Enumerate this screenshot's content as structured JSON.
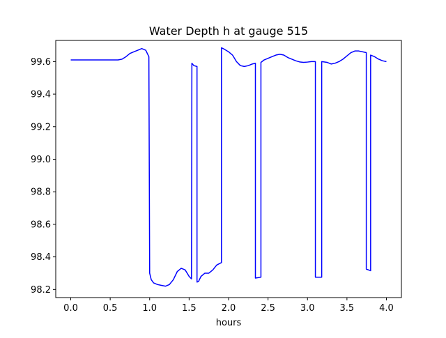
{
  "chart_data": {
    "type": "line",
    "title": "Water Depth h at gauge 515",
    "xlabel": "hours",
    "ylabel": "",
    "xlim": [
      -0.19,
      4.19
    ],
    "ylim": [
      98.15,
      99.73
    ],
    "xticks": [
      0.0,
      0.5,
      1.0,
      1.5,
      2.0,
      2.5,
      3.0,
      3.5,
      4.0
    ],
    "xtick_labels": [
      "0.0",
      "0.5",
      "1.0",
      "1.5",
      "2.0",
      "2.5",
      "3.0",
      "3.5",
      "4.0"
    ],
    "yticks": [
      98.2,
      98.4,
      98.6,
      98.8,
      99.0,
      99.2,
      99.4,
      99.6
    ],
    "ytick_labels": [
      "98.2",
      "98.4",
      "98.6",
      "98.8",
      "99.0",
      "99.2",
      "99.4",
      "99.6"
    ],
    "grid": false,
    "legend": "none",
    "series": [
      {
        "color": "#0000ff",
        "x": [
          0.0,
          0.3,
          0.6,
          0.65,
          0.7,
          0.75,
          0.8,
          0.85,
          0.9,
          0.95,
          0.99,
          1.0,
          1.02,
          1.05,
          1.1,
          1.15,
          1.2,
          1.25,
          1.3,
          1.35,
          1.4,
          1.45,
          1.5,
          1.53,
          1.535,
          1.56,
          1.6,
          1.6,
          1.62,
          1.65,
          1.7,
          1.75,
          1.8,
          1.85,
          1.89,
          1.91,
          1.91,
          1.95,
          2.0,
          2.05,
          2.1,
          2.15,
          2.2,
          2.25,
          2.3,
          2.34,
          2.34,
          2.41,
          2.41,
          2.45,
          2.5,
          2.55,
          2.6,
          2.65,
          2.7,
          2.75,
          2.8,
          2.85,
          2.9,
          2.95,
          3.0,
          3.05,
          3.1,
          3.1,
          3.18,
          3.18,
          3.25,
          3.3,
          3.35,
          3.4,
          3.45,
          3.5,
          3.55,
          3.6,
          3.65,
          3.7,
          3.745,
          3.745,
          3.8,
          3.8,
          3.85,
          3.9,
          3.95,
          4.0
        ],
        "y": [
          99.61,
          99.61,
          99.61,
          99.615,
          99.63,
          99.65,
          99.66,
          99.67,
          99.68,
          99.67,
          99.63,
          98.3,
          98.26,
          98.24,
          98.23,
          98.225,
          98.22,
          98.23,
          98.26,
          98.31,
          98.33,
          98.32,
          98.28,
          98.265,
          99.59,
          99.575,
          99.57,
          98.245,
          98.25,
          98.28,
          98.3,
          98.3,
          98.32,
          98.35,
          98.36,
          98.365,
          99.685,
          99.675,
          99.66,
          99.64,
          99.6,
          99.575,
          99.57,
          99.575,
          99.585,
          99.59,
          98.27,
          98.275,
          99.595,
          99.61,
          99.62,
          99.63,
          99.64,
          99.645,
          99.64,
          99.625,
          99.615,
          99.605,
          99.598,
          99.595,
          99.597,
          99.6,
          99.6,
          98.275,
          98.275,
          99.6,
          99.595,
          99.585,
          99.59,
          99.6,
          99.615,
          99.635,
          99.655,
          99.665,
          99.665,
          99.66,
          99.655,
          98.325,
          98.315,
          99.64,
          99.63,
          99.615,
          99.605,
          99.6
        ]
      }
    ]
  }
}
